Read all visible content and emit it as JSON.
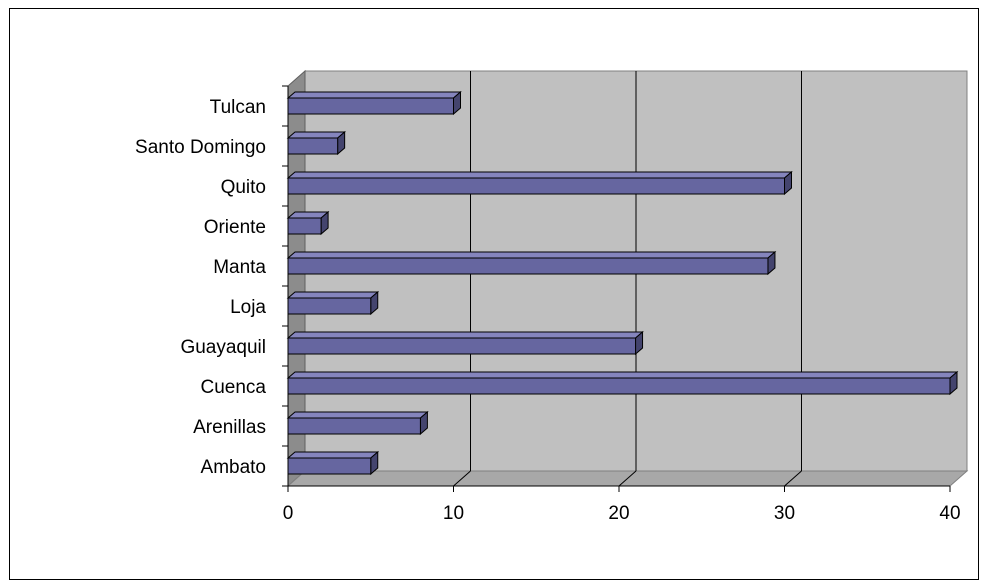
{
  "chart_data": {
    "type": "bar",
    "orientation": "horizontal",
    "style": "3d",
    "categories": [
      "Ambato",
      "Arenillas",
      "Cuenca",
      "Guayaquil",
      "Loja",
      "Manta",
      "Oriente",
      "Quito",
      "Santo Domingo",
      "Tulcan"
    ],
    "values": [
      5,
      8,
      40,
      21,
      5,
      29,
      2,
      30,
      3,
      10
    ],
    "xlim": [
      0,
      40
    ],
    "xticks": [
      "0",
      "10",
      "20",
      "30",
      "40"
    ],
    "grid": true,
    "legend": "none",
    "colors": {
      "bar_front": "#6666a0",
      "bar_top": "#8585bd",
      "bar_side": "#44446e",
      "wall": "#c0c0c0",
      "wall_side": "#8c8c8c",
      "floor": "#a8a8a8"
    }
  }
}
